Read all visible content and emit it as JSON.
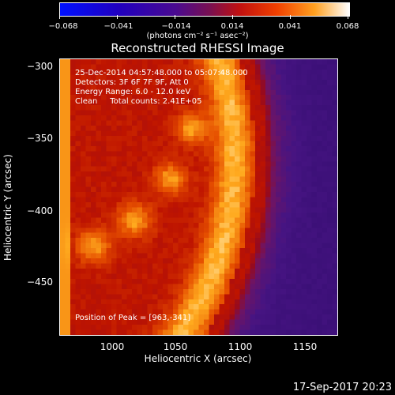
{
  "colorbar": {
    "ticks": [
      "−0.068",
      "−0.041",
      "−0.014",
      "0.014",
      "0.041",
      "0.068"
    ],
    "unit": "(photons cm⁻² s⁻¹ asec⁻²)"
  },
  "title": "Reconstructed RHESSI Image",
  "annotations": {
    "time": "25-Dec-2014 04:57:48.000 to 05:07:48.000",
    "detectors": "Detectors: 3F 6F 7F 9F, Att 0",
    "energy": "Energy Range: 6.0 - 12.0 keV",
    "clean": "Clean     Total counts: 2.41E+05",
    "peak": "Position of Peak = [963,-341]"
  },
  "axes": {
    "xlabel": "Heliocentric X (arcsec)",
    "ylabel": "Heliocentric Y (arcsec)",
    "xticks": [
      "1000",
      "1050",
      "1100",
      "1150"
    ],
    "yticks": [
      "−300",
      "−350",
      "−400",
      "−450"
    ]
  },
  "footer": {
    "date": "17-Sep-2017 20:23"
  }
}
